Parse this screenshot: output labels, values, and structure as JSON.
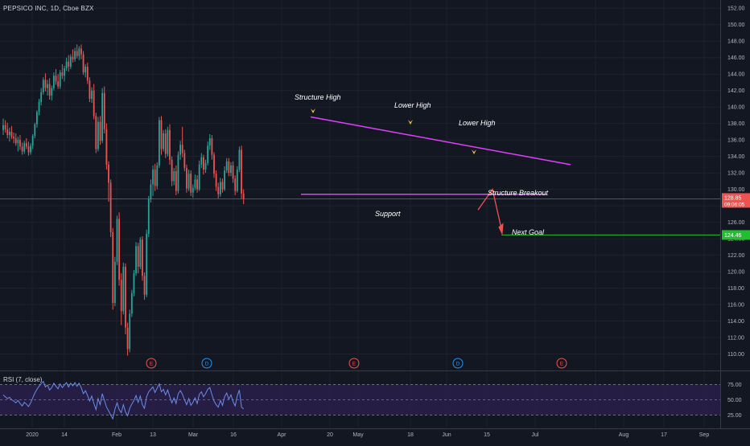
{
  "header": {
    "symbol_title": "PEPSICO INC, 1D, Cboe BZX"
  },
  "rsi": {
    "title": "RSI (7, close)",
    "levels": [
      "75.00",
      "50.00",
      "25.00"
    ]
  },
  "price_scale": {
    "labels": [
      "152.00",
      "150.00",
      "148.00",
      "146.00",
      "144.00",
      "142.00",
      "140.00",
      "138.00",
      "136.00",
      "134.00",
      "132.00",
      "130.00",
      "128.00",
      "126.00",
      "124.00",
      "122.00",
      "120.00",
      "118.00",
      "116.00",
      "114.00",
      "112.00",
      "110.00"
    ],
    "current_price": "128.85",
    "countdown": "09:06:05",
    "target_price": "124.46"
  },
  "time_axis": {
    "labels": [
      "2020",
      "14",
      "Feb",
      "13",
      "Mar",
      "16",
      "Apr",
      "20",
      "May",
      "18",
      "Jun",
      "15",
      "Jul",
      "Aug",
      "17",
      "Sep"
    ]
  },
  "annotations": {
    "structure_high": "Structure High",
    "lower_high_1": "Lower High",
    "lower_high_2": "Lower High",
    "structure_breakout": "Structure Breakout",
    "support": "Support",
    "next_goal": "Next Goal"
  },
  "event_markers": [
    {
      "letter": "E",
      "type": "earnings"
    },
    {
      "letter": "D",
      "type": "dividend"
    },
    {
      "letter": "E",
      "type": "earnings"
    },
    {
      "letter": "D",
      "type": "dividend"
    },
    {
      "letter": "E",
      "type": "earnings"
    }
  ],
  "colors": {
    "background": "#131722",
    "up": "#26a69a",
    "down": "#ef5350",
    "trendline": "#e040fb",
    "support_line": "#e040fb",
    "goal_line": "#1fbf2f",
    "current_price_line": "#ef5350",
    "arrow_marker": "#f5c542",
    "rsi_line": "#6a8de8",
    "rsi_band": "#2a1f4a"
  },
  "chart_data": {
    "type": "candlestick",
    "symbol": "PEPSICO INC",
    "interval": "1D",
    "exchange": "Cboe BZX",
    "ylim": [
      108,
      153
    ],
    "current_price": 128.85,
    "target_price": 124.46,
    "candles": [
      {
        "o": 137.2,
        "h": 138.6,
        "l": 136.6,
        "c": 137.8
      },
      {
        "o": 137.8,
        "h": 138.4,
        "l": 136.9,
        "c": 137.3
      },
      {
        "o": 137.3,
        "h": 138.1,
        "l": 136.2,
        "c": 136.6
      },
      {
        "o": 136.6,
        "h": 137.5,
        "l": 135.8,
        "c": 137.0
      },
      {
        "o": 137.0,
        "h": 137.7,
        "l": 136.1,
        "c": 136.4
      },
      {
        "o": 136.4,
        "h": 136.9,
        "l": 135.6,
        "c": 136.2
      },
      {
        "o": 136.2,
        "h": 136.8,
        "l": 135.3,
        "c": 135.6
      },
      {
        "o": 135.6,
        "h": 136.4,
        "l": 134.6,
        "c": 136.0
      },
      {
        "o": 136.0,
        "h": 136.6,
        "l": 134.8,
        "c": 135.2
      },
      {
        "o": 135.2,
        "h": 135.7,
        "l": 134.2,
        "c": 134.6
      },
      {
        "o": 134.6,
        "h": 135.9,
        "l": 134.3,
        "c": 135.6
      },
      {
        "o": 135.6,
        "h": 136.2,
        "l": 134.9,
        "c": 135.2
      },
      {
        "o": 135.2,
        "h": 135.8,
        "l": 134.1,
        "c": 134.5
      },
      {
        "o": 134.5,
        "h": 135.6,
        "l": 134.2,
        "c": 135.3
      },
      {
        "o": 135.3,
        "h": 136.7,
        "l": 134.9,
        "c": 136.5
      },
      {
        "o": 136.5,
        "h": 138.1,
        "l": 136.2,
        "c": 137.9
      },
      {
        "o": 137.9,
        "h": 139.6,
        "l": 137.5,
        "c": 139.4
      },
      {
        "o": 139.4,
        "h": 141.0,
        "l": 139.0,
        "c": 140.6
      },
      {
        "o": 140.6,
        "h": 142.3,
        "l": 140.2,
        "c": 141.8
      },
      {
        "o": 141.8,
        "h": 143.6,
        "l": 141.5,
        "c": 143.3
      },
      {
        "o": 143.3,
        "h": 144.1,
        "l": 141.9,
        "c": 142.3
      },
      {
        "o": 142.3,
        "h": 143.3,
        "l": 141.4,
        "c": 142.8
      },
      {
        "o": 142.8,
        "h": 143.5,
        "l": 140.9,
        "c": 141.4
      },
      {
        "o": 141.4,
        "h": 142.6,
        "l": 140.8,
        "c": 142.3
      },
      {
        "o": 142.3,
        "h": 144.2,
        "l": 142.0,
        "c": 143.8
      },
      {
        "o": 143.8,
        "h": 144.6,
        "l": 142.7,
        "c": 143.1
      },
      {
        "o": 143.1,
        "h": 144.0,
        "l": 142.2,
        "c": 142.5
      },
      {
        "o": 142.5,
        "h": 144.5,
        "l": 142.2,
        "c": 144.2
      },
      {
        "o": 144.2,
        "h": 145.2,
        "l": 143.4,
        "c": 143.8
      },
      {
        "o": 143.8,
        "h": 145.0,
        "l": 143.1,
        "c": 144.7
      },
      {
        "o": 144.7,
        "h": 146.0,
        "l": 144.4,
        "c": 145.5
      },
      {
        "o": 145.5,
        "h": 146.3,
        "l": 144.3,
        "c": 144.9
      },
      {
        "o": 144.9,
        "h": 146.4,
        "l": 144.6,
        "c": 146.1
      },
      {
        "o": 146.1,
        "h": 147.0,
        "l": 145.4,
        "c": 145.8
      },
      {
        "o": 145.8,
        "h": 147.2,
        "l": 145.5,
        "c": 146.8
      },
      {
        "o": 146.8,
        "h": 147.6,
        "l": 145.9,
        "c": 146.2
      },
      {
        "o": 146.2,
        "h": 147.4,
        "l": 145.7,
        "c": 147.1
      },
      {
        "o": 147.1,
        "h": 147.6,
        "l": 145.8,
        "c": 146.4
      },
      {
        "o": 146.4,
        "h": 146.8,
        "l": 143.9,
        "c": 144.2
      },
      {
        "o": 144.2,
        "h": 145.2,
        "l": 143.6,
        "c": 144.9
      },
      {
        "o": 144.9,
        "h": 145.4,
        "l": 142.8,
        "c": 143.2
      },
      {
        "o": 143.2,
        "h": 143.6,
        "l": 140.6,
        "c": 141.0
      },
      {
        "o": 141.0,
        "h": 142.4,
        "l": 140.5,
        "c": 142.0
      },
      {
        "o": 142.0,
        "h": 142.8,
        "l": 138.5,
        "c": 138.9
      },
      {
        "o": 138.9,
        "h": 139.3,
        "l": 134.4,
        "c": 134.9
      },
      {
        "o": 134.9,
        "h": 138.8,
        "l": 134.6,
        "c": 138.2
      },
      {
        "o": 138.2,
        "h": 138.9,
        "l": 135.4,
        "c": 135.9
      },
      {
        "o": 135.9,
        "h": 142.3,
        "l": 135.6,
        "c": 141.7
      },
      {
        "o": 141.7,
        "h": 142.5,
        "l": 136.8,
        "c": 137.3
      },
      {
        "o": 137.3,
        "h": 138.0,
        "l": 132.4,
        "c": 133.0
      },
      {
        "o": 133.0,
        "h": 133.4,
        "l": 128.5,
        "c": 130.8
      },
      {
        "o": 130.8,
        "h": 131.2,
        "l": 124.2,
        "c": 124.8
      },
      {
        "o": 124.8,
        "h": 125.3,
        "l": 115.4,
        "c": 116.2
      },
      {
        "o": 116.2,
        "h": 121.8,
        "l": 115.8,
        "c": 121.2
      },
      {
        "o": 121.2,
        "h": 126.8,
        "l": 120.8,
        "c": 126.4
      },
      {
        "o": 126.4,
        "h": 127.2,
        "l": 118.3,
        "c": 119.0
      },
      {
        "o": 119.0,
        "h": 119.8,
        "l": 113.5,
        "c": 115.2
      },
      {
        "o": 115.2,
        "h": 121.1,
        "l": 114.8,
        "c": 120.6
      },
      {
        "o": 120.6,
        "h": 121.0,
        "l": 112.4,
        "c": 113.2
      },
      {
        "o": 113.2,
        "h": 113.8,
        "l": 109.8,
        "c": 110.6
      },
      {
        "o": 110.6,
        "h": 115.4,
        "l": 110.2,
        "c": 114.9
      },
      {
        "o": 114.9,
        "h": 117.8,
        "l": 114.5,
        "c": 117.4
      },
      {
        "o": 117.4,
        "h": 120.2,
        "l": 117.0,
        "c": 119.8
      },
      {
        "o": 119.8,
        "h": 123.6,
        "l": 119.5,
        "c": 123.1
      },
      {
        "o": 123.1,
        "h": 123.5,
        "l": 119.8,
        "c": 120.6
      },
      {
        "o": 120.6,
        "h": 124.2,
        "l": 120.3,
        "c": 123.9
      },
      {
        "o": 123.9,
        "h": 124.3,
        "l": 118.9,
        "c": 119.5
      },
      {
        "o": 119.5,
        "h": 119.9,
        "l": 116.6,
        "c": 117.2
      },
      {
        "o": 117.2,
        "h": 125.1,
        "l": 116.9,
        "c": 124.6
      },
      {
        "o": 124.6,
        "h": 129.2,
        "l": 124.2,
        "c": 128.8
      },
      {
        "o": 128.8,
        "h": 131.2,
        "l": 128.4,
        "c": 130.6
      },
      {
        "o": 130.6,
        "h": 132.9,
        "l": 129.2,
        "c": 132.4
      },
      {
        "o": 132.4,
        "h": 133.1,
        "l": 129.8,
        "c": 130.4
      },
      {
        "o": 130.4,
        "h": 133.3,
        "l": 130.0,
        "c": 132.9
      },
      {
        "o": 132.9,
        "h": 138.8,
        "l": 132.6,
        "c": 138.4
      },
      {
        "o": 138.4,
        "h": 138.9,
        "l": 134.2,
        "c": 134.9
      },
      {
        "o": 134.9,
        "h": 137.2,
        "l": 134.6,
        "c": 136.8
      },
      {
        "o": 136.8,
        "h": 137.3,
        "l": 133.8,
        "c": 134.3
      },
      {
        "o": 134.3,
        "h": 137.6,
        "l": 134.0,
        "c": 137.2
      },
      {
        "o": 137.2,
        "h": 137.9,
        "l": 133.0,
        "c": 133.6
      },
      {
        "o": 133.6,
        "h": 134.0,
        "l": 130.4,
        "c": 131.0
      },
      {
        "o": 131.0,
        "h": 132.6,
        "l": 130.5,
        "c": 132.2
      },
      {
        "o": 132.2,
        "h": 132.9,
        "l": 129.3,
        "c": 129.8
      },
      {
        "o": 129.8,
        "h": 134.6,
        "l": 129.5,
        "c": 134.2
      },
      {
        "o": 134.2,
        "h": 135.9,
        "l": 133.6,
        "c": 135.4
      },
      {
        "o": 135.4,
        "h": 137.6,
        "l": 133.9,
        "c": 134.4
      },
      {
        "o": 134.4,
        "h": 134.8,
        "l": 132.2,
        "c": 132.6
      },
      {
        "o": 132.6,
        "h": 133.0,
        "l": 129.6,
        "c": 130.1
      },
      {
        "o": 130.1,
        "h": 132.4,
        "l": 129.8,
        "c": 131.9
      },
      {
        "o": 131.9,
        "h": 132.3,
        "l": 129.2,
        "c": 129.6
      },
      {
        "o": 129.6,
        "h": 130.6,
        "l": 129.0,
        "c": 130.2
      },
      {
        "o": 130.2,
        "h": 131.8,
        "l": 129.9,
        "c": 131.2
      },
      {
        "o": 131.2,
        "h": 131.7,
        "l": 129.6,
        "c": 130.0
      },
      {
        "o": 130.0,
        "h": 133.5,
        "l": 129.8,
        "c": 133.0
      },
      {
        "o": 133.0,
        "h": 134.4,
        "l": 132.6,
        "c": 133.9
      },
      {
        "o": 133.9,
        "h": 134.2,
        "l": 131.8,
        "c": 132.4
      },
      {
        "o": 132.4,
        "h": 133.6,
        "l": 132.0,
        "c": 133.2
      },
      {
        "o": 133.2,
        "h": 135.8,
        "l": 132.9,
        "c": 135.3
      },
      {
        "o": 135.3,
        "h": 136.7,
        "l": 134.8,
        "c": 136.2
      },
      {
        "o": 136.2,
        "h": 136.6,
        "l": 133.6,
        "c": 134.2
      },
      {
        "o": 134.2,
        "h": 134.5,
        "l": 131.4,
        "c": 131.9
      },
      {
        "o": 131.9,
        "h": 132.3,
        "l": 129.8,
        "c": 130.3
      },
      {
        "o": 130.3,
        "h": 130.8,
        "l": 128.9,
        "c": 129.4
      },
      {
        "o": 129.4,
        "h": 131.4,
        "l": 129.1,
        "c": 130.9
      },
      {
        "o": 130.9,
        "h": 131.3,
        "l": 129.6,
        "c": 130.0
      },
      {
        "o": 130.0,
        "h": 132.8,
        "l": 129.8,
        "c": 132.3
      },
      {
        "o": 132.3,
        "h": 133.8,
        "l": 132.0,
        "c": 133.4
      },
      {
        "o": 133.4,
        "h": 133.8,
        "l": 131.6,
        "c": 132.0
      },
      {
        "o": 132.0,
        "h": 133.3,
        "l": 131.6,
        "c": 132.9
      },
      {
        "o": 132.9,
        "h": 133.4,
        "l": 130.8,
        "c": 131.3
      },
      {
        "o": 131.3,
        "h": 131.7,
        "l": 129.3,
        "c": 129.8
      },
      {
        "o": 129.8,
        "h": 132.8,
        "l": 129.6,
        "c": 132.4
      },
      {
        "o": 132.4,
        "h": 135.2,
        "l": 132.1,
        "c": 134.8
      },
      {
        "o": 134.8,
        "h": 135.3,
        "l": 128.9,
        "c": 129.5
      },
      {
        "o": 129.5,
        "h": 130.0,
        "l": 128.2,
        "c": 128.85
      }
    ],
    "structure_high_price": 138.8,
    "support_price": 129.4,
    "rsi": {
      "period": 7,
      "source": "close",
      "levels": [
        75,
        50,
        25
      ],
      "values": [
        58,
        55,
        52,
        54,
        50,
        48,
        45,
        49,
        44,
        40,
        46,
        43,
        39,
        45,
        53,
        61,
        67,
        72,
        76,
        80,
        71,
        74,
        66,
        70,
        77,
        72,
        68,
        76,
        70,
        74,
        78,
        71,
        77,
        73,
        78,
        72,
        77,
        70,
        60,
        65,
        57,
        48,
        56,
        44,
        34,
        52,
        42,
        60,
        49,
        38,
        32,
        25,
        19,
        35,
        45,
        34,
        29,
        42,
        30,
        24,
        36,
        43,
        49,
        57,
        46,
        56,
        42,
        36,
        55,
        63,
        67,
        71,
        62,
        69,
        76,
        63,
        67,
        58,
        66,
        55,
        45,
        53,
        44,
        60,
        65,
        59,
        50,
        42,
        52,
        41,
        46,
        53,
        44,
        59,
        63,
        55,
        60,
        67,
        70,
        58,
        48,
        42,
        38,
        49,
        41,
        55,
        61,
        51,
        58,
        47,
        40,
        56,
        66,
        38,
        35
      ]
    }
  }
}
